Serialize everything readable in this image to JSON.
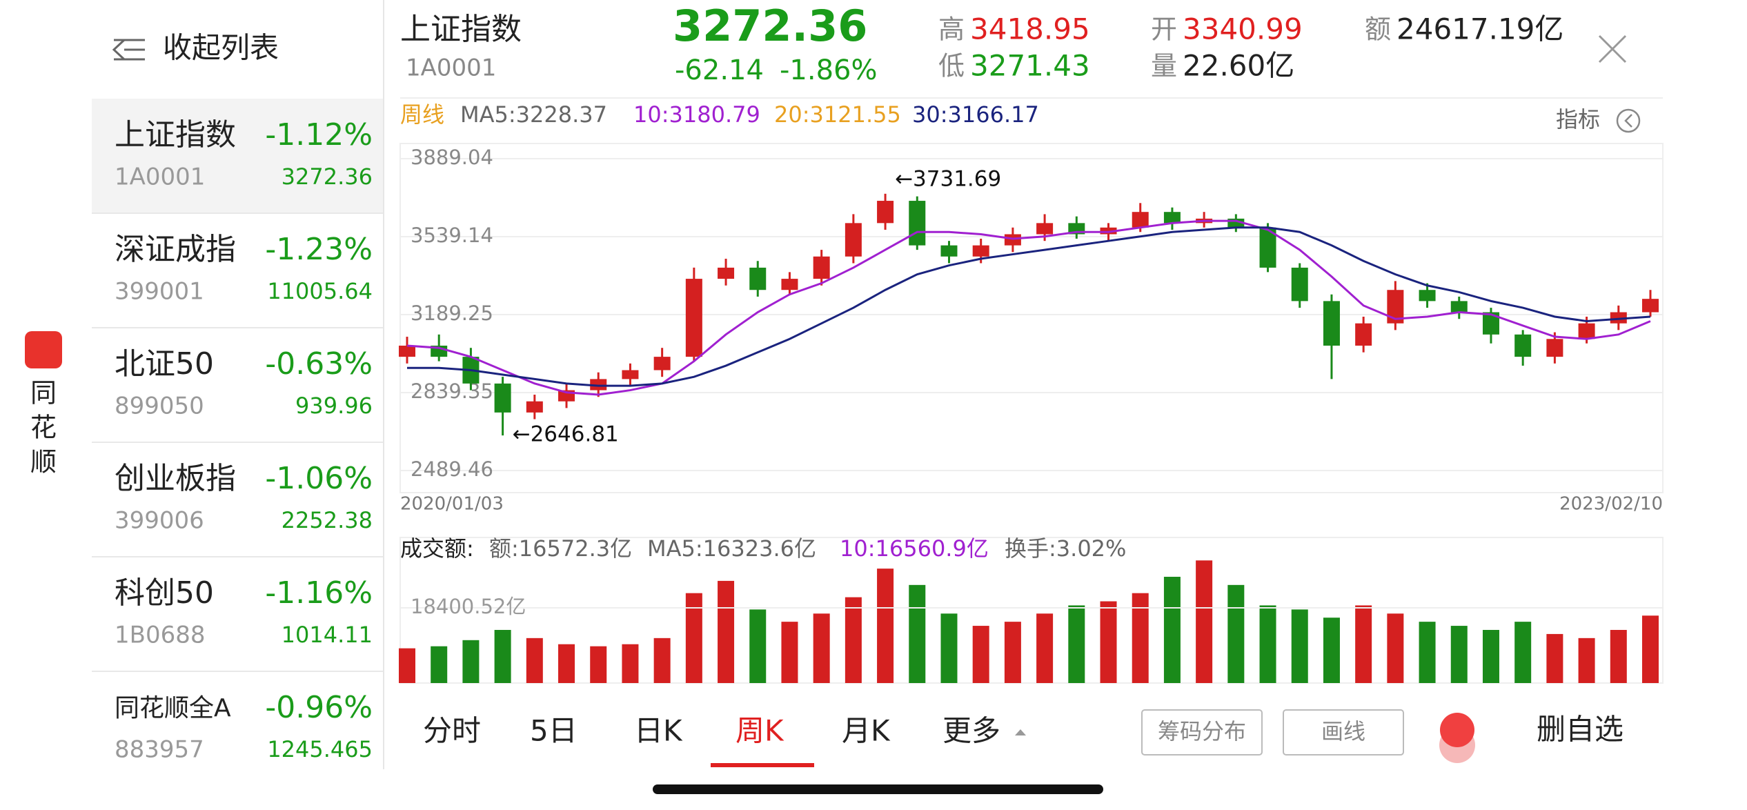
{
  "app": {
    "name": [
      "同",
      "花",
      "顺"
    ]
  },
  "sidebar": {
    "collapse": "收起列表",
    "items": [
      {
        "name": "上证指数",
        "code": "1A0001",
        "change": "-1.12%",
        "price": "3272.36"
      },
      {
        "name": "深证成指",
        "code": "399001",
        "change": "-1.23%",
        "price": "11005.64"
      },
      {
        "name": "北证50",
        "code": "899050",
        "change": "-0.63%",
        "price": "939.96"
      },
      {
        "name": "创业板指",
        "code": "399006",
        "change": "-1.06%",
        "price": "2252.38"
      },
      {
        "name": "科创50",
        "code": "1B0688",
        "change": "-1.16%",
        "price": "1014.11"
      },
      {
        "name": "同花顺全A",
        "code": "883957",
        "change": "-0.96%",
        "price": "1245.465"
      }
    ]
  },
  "quote": {
    "name": "上证指数",
    "code": "1A0001",
    "price": "3272.36",
    "change": "-62.14",
    "change_pct": "-1.86%",
    "high_label": "高",
    "high": "3418.95",
    "low_label": "低",
    "low": "3271.43",
    "open_label": "开",
    "open": "3340.99",
    "volume_label": "量",
    "volume": "22.60亿",
    "amount_label": "额",
    "amount": "24617.19亿"
  },
  "price_chart": {
    "type": "candlestick",
    "period": "周线",
    "ma_legend": [
      "MA5:3228.37",
      "10:3180.79",
      "20:3121.55",
      "30:3166.17"
    ],
    "indicator": "指标",
    "start_date": "2020/01/03",
    "end_date": "2023/02/10",
    "ylim": [
      2489.46,
      3889.04
    ],
    "yticks": [
      3889.04,
      3539.14,
      3189.25,
      2839.35,
      2489.46
    ],
    "annotations": [
      "←3731.69",
      "←2646.81"
    ],
    "up_color": "#d42020",
    "down_color": "#1a8a1a",
    "open": [
      3000,
      3050,
      3000,
      2880,
      2750,
      2800,
      2850,
      2900,
      2940,
      3000,
      3350,
      3400,
      3300,
      3350,
      3450,
      3600,
      3700,
      3500,
      3450,
      3500,
      3550,
      3600,
      3550,
      3580,
      3650,
      3600,
      3620,
      3580,
      3400,
      3250,
      3050,
      3150,
      3300,
      3250,
      3200,
      3100,
      3000,
      3080,
      3150,
      3200
    ],
    "high": [
      3090,
      3100,
      3040,
      2910,
      2830,
      2880,
      2930,
      2970,
      3040,
      3400,
      3440,
      3430,
      3380,
      3480,
      3640,
      3731.69,
      3720,
      3520,
      3530,
      3580,
      3640,
      3630,
      3600,
      3690,
      3670,
      3650,
      3640,
      3600,
      3420,
      3280,
      3180,
      3340,
      3330,
      3270,
      3220,
      3120,
      3110,
      3180,
      3230,
      3300
    ],
    "low": [
      2970,
      2980,
      2850,
      2646.81,
      2720,
      2770,
      2820,
      2870,
      2910,
      2980,
      3320,
      3270,
      3280,
      3320,
      3420,
      3570,
      3480,
      3420,
      3420,
      3470,
      3520,
      3530,
      3520,
      3560,
      3570,
      3580,
      3560,
      3380,
      3220,
      2900,
      3020,
      3120,
      3220,
      3170,
      3060,
      2960,
      2970,
      3060,
      3120,
      3180
    ],
    "close": [
      3050,
      3000,
      2880,
      2750,
      2800,
      2850,
      2900,
      2940,
      3000,
      3350,
      3400,
      3300,
      3350,
      3450,
      3600,
      3700,
      3500,
      3450,
      3500,
      3550,
      3600,
      3550,
      3580,
      3650,
      3600,
      3620,
      3580,
      3400,
      3250,
      3050,
      3150,
      3300,
      3250,
      3200,
      3100,
      3000,
      3080,
      3150,
      3200,
      3260
    ],
    "series": [
      {
        "color": "#a020d0",
        "values": [
          3050,
          3040,
          3000,
          2940,
          2880,
          2840,
          2830,
          2850,
          2880,
          2980,
          3100,
          3200,
          3280,
          3330,
          3400,
          3480,
          3560,
          3560,
          3550,
          3530,
          3540,
          3560,
          3560,
          3580,
          3600,
          3610,
          3610,
          3570,
          3480,
          3360,
          3230,
          3170,
          3180,
          3200,
          3190,
          3140,
          3090,
          3080,
          3100,
          3160
        ]
      },
      {
        "color": "#1a237e",
        "values": [
          2950,
          2950,
          2940,
          2920,
          2900,
          2880,
          2870,
          2870,
          2880,
          2910,
          2960,
          3020,
          3080,
          3150,
          3220,
          3300,
          3370,
          3410,
          3440,
          3460,
          3480,
          3500,
          3520,
          3540,
          3560,
          3570,
          3580,
          3580,
          3560,
          3500,
          3430,
          3370,
          3320,
          3290,
          3250,
          3220,
          3180,
          3160,
          3170,
          3180
        ]
      }
    ]
  },
  "volume_chart": {
    "type": "bar",
    "legend": [
      "成交额:",
      "额:16572.3亿",
      "MA5:16323.6亿",
      "10:16560.9亿",
      "换手:3.02%"
    ],
    "yticks": [
      {
        "value": 18400.52,
        "label": "18400.52亿"
      }
    ],
    "values": [
      8500,
      9000,
      10500,
      13000,
      11000,
      9500,
      9000,
      9500,
      11000,
      22000,
      25000,
      18000,
      15000,
      17000,
      21000,
      28000,
      24000,
      17000,
      14000,
      15000,
      17000,
      19000,
      20000,
      22000,
      26000,
      30000,
      24000,
      19000,
      18000,
      16000,
      19000,
      17000,
      15000,
      14000,
      13000,
      15000,
      12000,
      11000,
      13000,
      16500
    ]
  },
  "toolbar": {
    "tabs": [
      "分时",
      "5日",
      "日K",
      "周K",
      "月K",
      "更多"
    ],
    "selected": 3,
    "buttons": [
      "筹码分布",
      "画线",
      "删自选"
    ]
  }
}
